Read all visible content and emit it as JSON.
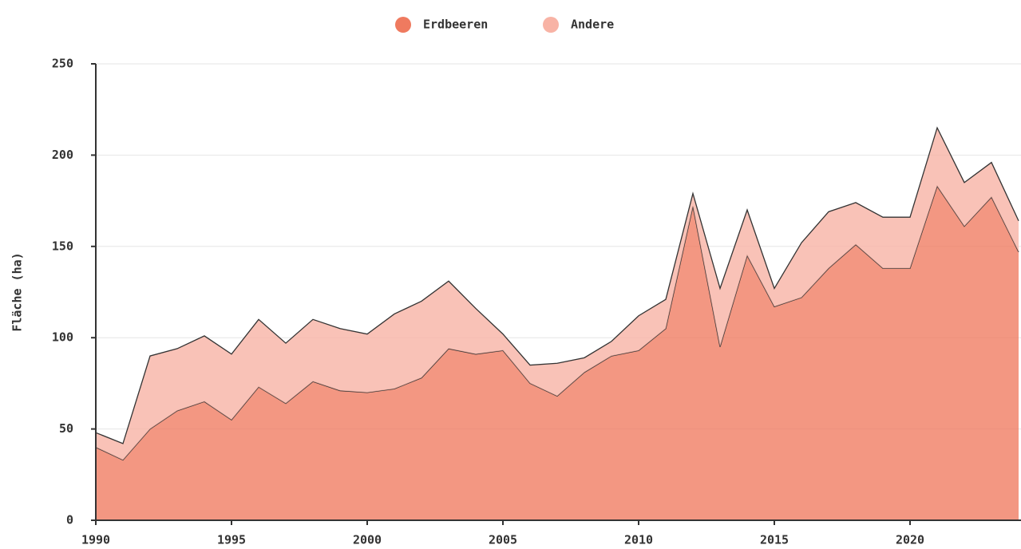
{
  "chart_data": {
    "type": "stacked_area",
    "y_label": "Fläche (ha)",
    "x": [
      1990,
      1991,
      1992,
      1993,
      1994,
      1995,
      1996,
      1997,
      1998,
      1999,
      2000,
      2001,
      2002,
      2003,
      2004,
      2005,
      2006,
      2007,
      2008,
      2009,
      2010,
      2011,
      2012,
      2013,
      2014,
      2015,
      2016,
      2017,
      2018,
      2019,
      2020,
      2021,
      2022,
      2023,
      2024
    ],
    "series": [
      {
        "name": "Erdbeeren",
        "color": "#ef7a5f",
        "values": [
          40,
          33,
          50,
          60,
          65,
          55,
          73,
          64,
          76,
          71,
          70,
          72,
          78,
          94,
          91,
          93,
          75,
          68,
          81,
          90,
          93,
          105,
          172,
          95,
          145,
          117,
          122,
          138,
          151,
          138,
          138,
          183,
          161,
          177,
          147
        ]
      },
      {
        "name": "Andere",
        "color": "#f8b3a5",
        "values": [
          8,
          9,
          40,
          34,
          36,
          36,
          37,
          33,
          34,
          34,
          32,
          41,
          42,
          37,
          25,
          9,
          10,
          18,
          8,
          8,
          19,
          16,
          7,
          32,
          25,
          10,
          30,
          31,
          23,
          28,
          28,
          32,
          24,
          19,
          17
        ]
      }
    ],
    "xlim": [
      1990,
      2024
    ],
    "xticks": [
      1990,
      1995,
      2000,
      2005,
      2010,
      2015,
      2020
    ],
    "ylim": [
      0,
      250
    ],
    "yticks": [
      0,
      50,
      100,
      150,
      200,
      250
    ],
    "grid": true,
    "legend": "top"
  }
}
